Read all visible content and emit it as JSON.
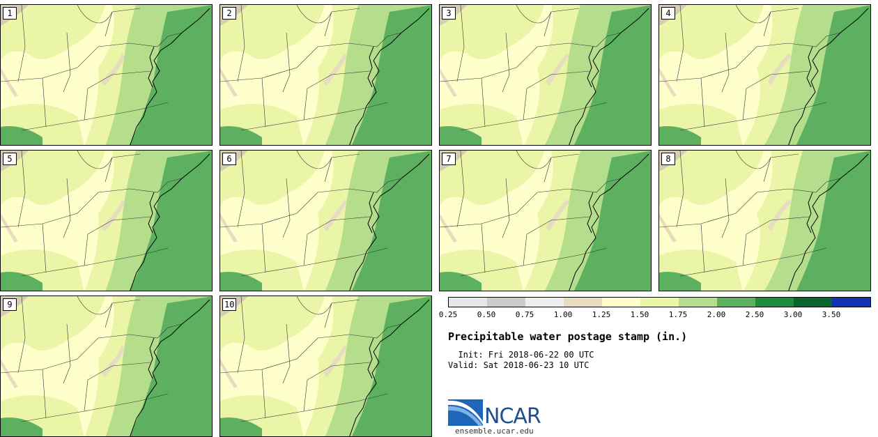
{
  "panels": [
    {
      "label": "1"
    },
    {
      "label": "2"
    },
    {
      "label": "3"
    },
    {
      "label": "4"
    },
    {
      "label": "5"
    },
    {
      "label": "6"
    },
    {
      "label": "7"
    },
    {
      "label": "8"
    },
    {
      "label": "9"
    },
    {
      "label": "10"
    }
  ],
  "legend": {
    "ticks": [
      "0.25",
      "0.50",
      "0.75",
      "1.00",
      "1.25",
      "1.50",
      "1.75",
      "2.00",
      "2.50",
      "3.00",
      "3.50"
    ],
    "colors": [
      "#e6e6e6",
      "#cccccc",
      "#ededed",
      "#e8dcc0",
      "#ffffcc",
      "#eaf5a8",
      "#b4de8c",
      "#5cb060",
      "#1e8c3c",
      "#0a6430",
      "#1432b4"
    ]
  },
  "title": "Precipitable water postage stamp (in.)",
  "init": "  Init: Fri 2018-06-22 00 UTC",
  "valid": "Valid: Sat 2018-06-23 10 UTC",
  "logo": {
    "name": "NCAR",
    "site": "ensemble.ucar.edu"
  }
}
